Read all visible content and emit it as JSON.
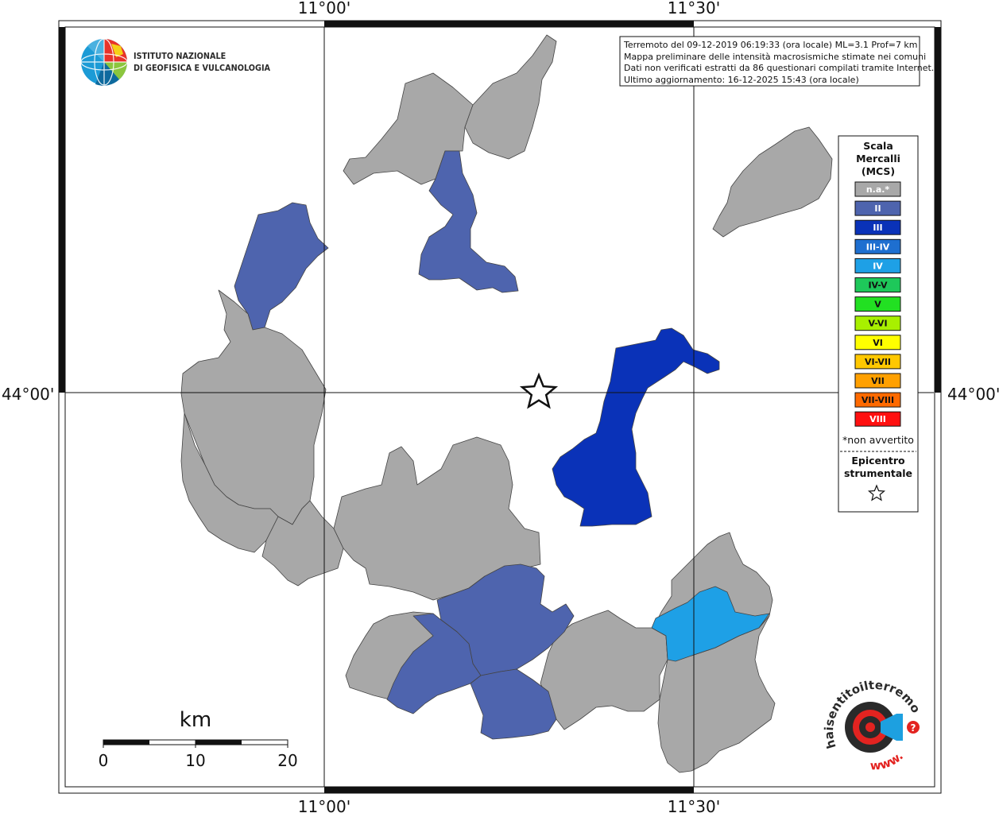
{
  "coordinates": {
    "top": [
      "11°00'",
      "11°30'"
    ],
    "bottom": [
      "11°00'",
      "11°30'"
    ],
    "left": "44°00'",
    "right": "44°00'"
  },
  "info_box": {
    "lines": [
      "Terremoto del 09-12-2019 06:19:33 (ora locale) ML=3.1 Prof=7 km",
      "Mappa preliminare delle intensità macrosismiche stimate nei comuni",
      "Dati non verificati estratti da 86 questionari compilati tramite Internet.",
      "Ultimo aggiornamento: 16-12-2025 15:43 (ora locale)"
    ]
  },
  "logo": {
    "line1": "ISTITUTO NAZIONALE",
    "line2": "DI GEOFISICA E VULCANOLOGIA"
  },
  "legend": {
    "title": [
      "Scala",
      "Mercalli",
      "(MCS)"
    ],
    "items": [
      {
        "label": "n.a.*",
        "color": "#a8a8a8",
        "text_color": "#ffffff"
      },
      {
        "label": "II",
        "color": "#4e64ae",
        "text_color": "#ffffff"
      },
      {
        "label": "III",
        "color": "#0a32b8",
        "text_color": "#ffffff"
      },
      {
        "label": "III-IV",
        "color": "#1e6fd0",
        "text_color": "#ffffff"
      },
      {
        "label": "IV",
        "color": "#1ea0e6",
        "text_color": "#ffffff"
      },
      {
        "label": "IV-V",
        "color": "#1ec85a",
        "text_color": "#111111"
      },
      {
        "label": "V",
        "color": "#22e022",
        "text_color": "#111111"
      },
      {
        "label": "V-VI",
        "color": "#a8f000",
        "text_color": "#111111"
      },
      {
        "label": "VI",
        "color": "#ffff00",
        "text_color": "#111111"
      },
      {
        "label": "VI-VII",
        "color": "#ffc800",
        "text_color": "#111111"
      },
      {
        "label": "VII",
        "color": "#ffa000",
        "text_color": "#111111"
      },
      {
        "label": "VII-VIII",
        "color": "#ff6a00",
        "text_color": "#111111"
      },
      {
        "label": "VIII",
        "color": "#ff1010",
        "text_color": "#ffffff"
      }
    ],
    "note": "*non avvertito",
    "epicenter_title": [
      "Epicentro",
      "strumentale"
    ]
  },
  "scale_bar": {
    "unit": "km",
    "labels": [
      "0",
      "10",
      "20"
    ]
  },
  "hai_sentito": {
    "text": "haisentitoilterremoto.it",
    "prefix": "www."
  },
  "colors": {
    "na": "#a8a8a8",
    "II": "#4e64ae",
    "III": "#0a32b8",
    "IV": "#1ea0e6"
  }
}
